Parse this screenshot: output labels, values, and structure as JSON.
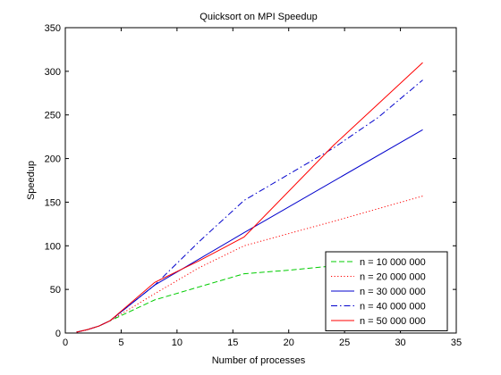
{
  "chart_data": {
    "type": "line",
    "title": "Quicksort on MPI Speedup",
    "xlabel": "Number of processes",
    "ylabel": "Speedup",
    "xlim": [
      0,
      35
    ],
    "ylim": [
      0,
      350
    ],
    "xticks": [
      0,
      5,
      10,
      15,
      20,
      25,
      30,
      35
    ],
    "yticks": [
      0,
      50,
      100,
      150,
      200,
      250,
      300,
      350
    ],
    "grid": false,
    "legend_position": "bottom-right",
    "series": [
      {
        "name": "n = 10 000 000",
        "color": "#00cc00",
        "dash": "dashed",
        "x": [
          1,
          2,
          3,
          4,
          8,
          16,
          20,
          24,
          32
        ],
        "y": [
          1,
          4,
          8,
          14,
          38,
          68,
          72,
          77,
          79
        ]
      },
      {
        "name": "n = 20 000 000",
        "color": "#ff0000",
        "dash": "dotted",
        "x": [
          1,
          2,
          3,
          4,
          8,
          12,
          16,
          24,
          32
        ],
        "y": [
          1,
          4,
          8,
          14,
          45,
          75,
          100,
          128,
          157
        ]
      },
      {
        "name": "n = 30 000 000",
        "color": "#0000cc",
        "dash": "solid",
        "x": [
          1,
          2,
          3,
          4,
          8,
          16,
          32
        ],
        "y": [
          1,
          4,
          8,
          14,
          55,
          115,
          233
        ]
      },
      {
        "name": "n = 40 000 000",
        "color": "#0000cc",
        "dash": "dashdot",
        "x": [
          1,
          2,
          3,
          4,
          8,
          12,
          16,
          20,
          24,
          28,
          32
        ],
        "y": [
          1,
          4,
          8,
          14,
          55,
          105,
          152,
          182,
          212,
          247,
          290
        ]
      },
      {
        "name": "n = 50 000 000",
        "color": "#ff0000",
        "dash": "solid",
        "x": [
          1,
          2,
          3,
          4,
          8,
          12,
          16,
          24,
          32
        ],
        "y": [
          1,
          4,
          8,
          14,
          58,
          83,
          110,
          215,
          310
        ]
      }
    ]
  }
}
